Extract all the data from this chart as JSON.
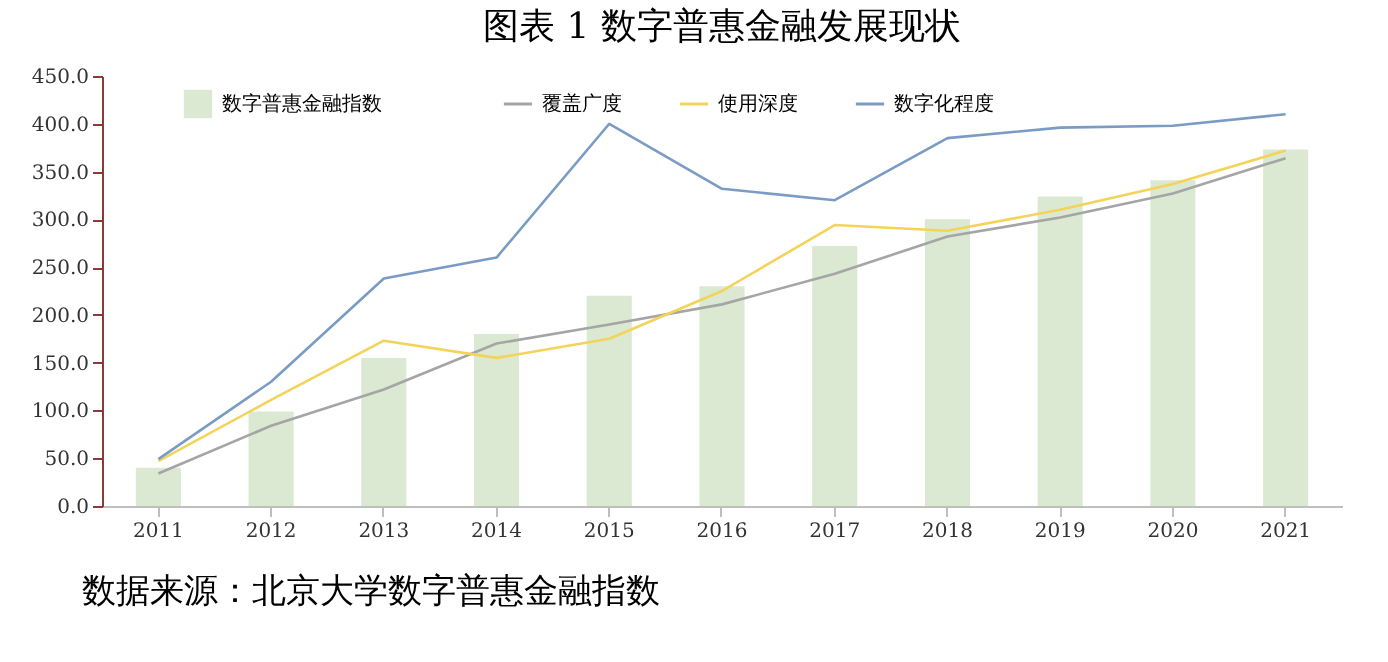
{
  "chart_data": {
    "type": "bar",
    "title": "图表 1 数字普惠金融发展现状",
    "annotations": [
      "数据来源：北京大学数字普惠金融指数"
    ],
    "categories": [
      "2011",
      "2012",
      "2013",
      "2014",
      "2015",
      "2016",
      "2017",
      "2018",
      "2019",
      "2020",
      "2021"
    ],
    "series": [
      {
        "name": "数字普惠金融指数",
        "color": "#dbe9d2",
        "values": [
          40,
          99,
          155,
          180,
          220,
          230,
          272,
          300,
          324,
          341,
          373
        ]
      },
      {
        "name": "覆盖广度",
        "type": "line",
        "color": "#a5a5a5",
        "values": [
          34,
          84,
          122,
          170,
          190,
          211,
          243,
          282,
          302,
          327,
          364
        ]
      },
      {
        "name": "使用深度",
        "type": "line",
        "color": "#f4d35a",
        "values": [
          47,
          111,
          173,
          155,
          175,
          225,
          294,
          288,
          310,
          337,
          372
        ]
      },
      {
        "name": "数字化程度",
        "type": "line",
        "color": "#7a9cc4",
        "values": [
          49,
          130,
          238,
          260,
          400,
          332,
          320,
          385,
          396,
          398,
          410
        ]
      }
    ],
    "ylim": [
      0,
      450
    ],
    "yticks": [
      {
        "value": 0,
        "label": "0.0"
      },
      {
        "value": 50,
        "label": "50.0"
      },
      {
        "value": 100,
        "label": "100.0"
      },
      {
        "value": 150,
        "label": "150.0"
      },
      {
        "value": 200,
        "label": "200.0"
      },
      {
        "value": 250,
        "label": "250.0"
      },
      {
        "value": 300,
        "label": "300.0"
      },
      {
        "value": 350,
        "label": "350.0"
      },
      {
        "value": 400,
        "label": "400.0"
      },
      {
        "value": 450,
        "label": "450.0"
      }
    ],
    "grid": false,
    "legend": "top",
    "line_style": "solid"
  }
}
